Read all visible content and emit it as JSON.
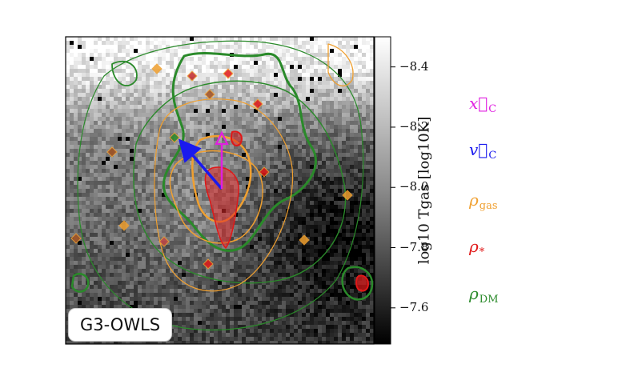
{
  "chart_data": {
    "type": "heatmap",
    "panel_label": "G3-OWLS",
    "colorbar": {
      "title": "log₁₀ T_gas [log₁₀K]",
      "title_display": "log10 Tgas [log10K]",
      "ticks": [
        8.4,
        8.2,
        8.0,
        7.8,
        7.6
      ],
      "tick_labels": [
        "8.4",
        "8.2",
        "8.0",
        "7.8",
        "7.6"
      ],
      "range": [
        7.48,
        8.5
      ],
      "colormap": "grayscale (white = high, black = low)"
    },
    "legend": [
      {
        "symbol": "x⃗",
        "sub": "C",
        "color": "#e020e0",
        "label": "x_C"
      },
      {
        "symbol": "v⃗",
        "sub": "C",
        "color": "#1a1aee",
        "label": "v_C"
      },
      {
        "symbol": "ρ",
        "sub": "gas",
        "color": "#f0a030",
        "label": "rho_gas"
      },
      {
        "symbol": "ρ",
        "sub": "*",
        "color": "#e01818",
        "label": "rho_*"
      },
      {
        "symbol": "ρ",
        "sub": "DM",
        "color": "#2a8a2a",
        "label": "rho_DM"
      }
    ],
    "overlays": [
      "gas density contours (orange)",
      "stellar density contours (red)",
      "dark matter density contours (green)",
      "centre velocity arrow (blue)",
      "centre offset arrow (magenta)"
    ]
  },
  "colors": {
    "magenta": "#e020e0",
    "blue": "#1a1aee",
    "orange": "#f0a030",
    "red": "#e01818",
    "green": "#2a8a2a"
  }
}
